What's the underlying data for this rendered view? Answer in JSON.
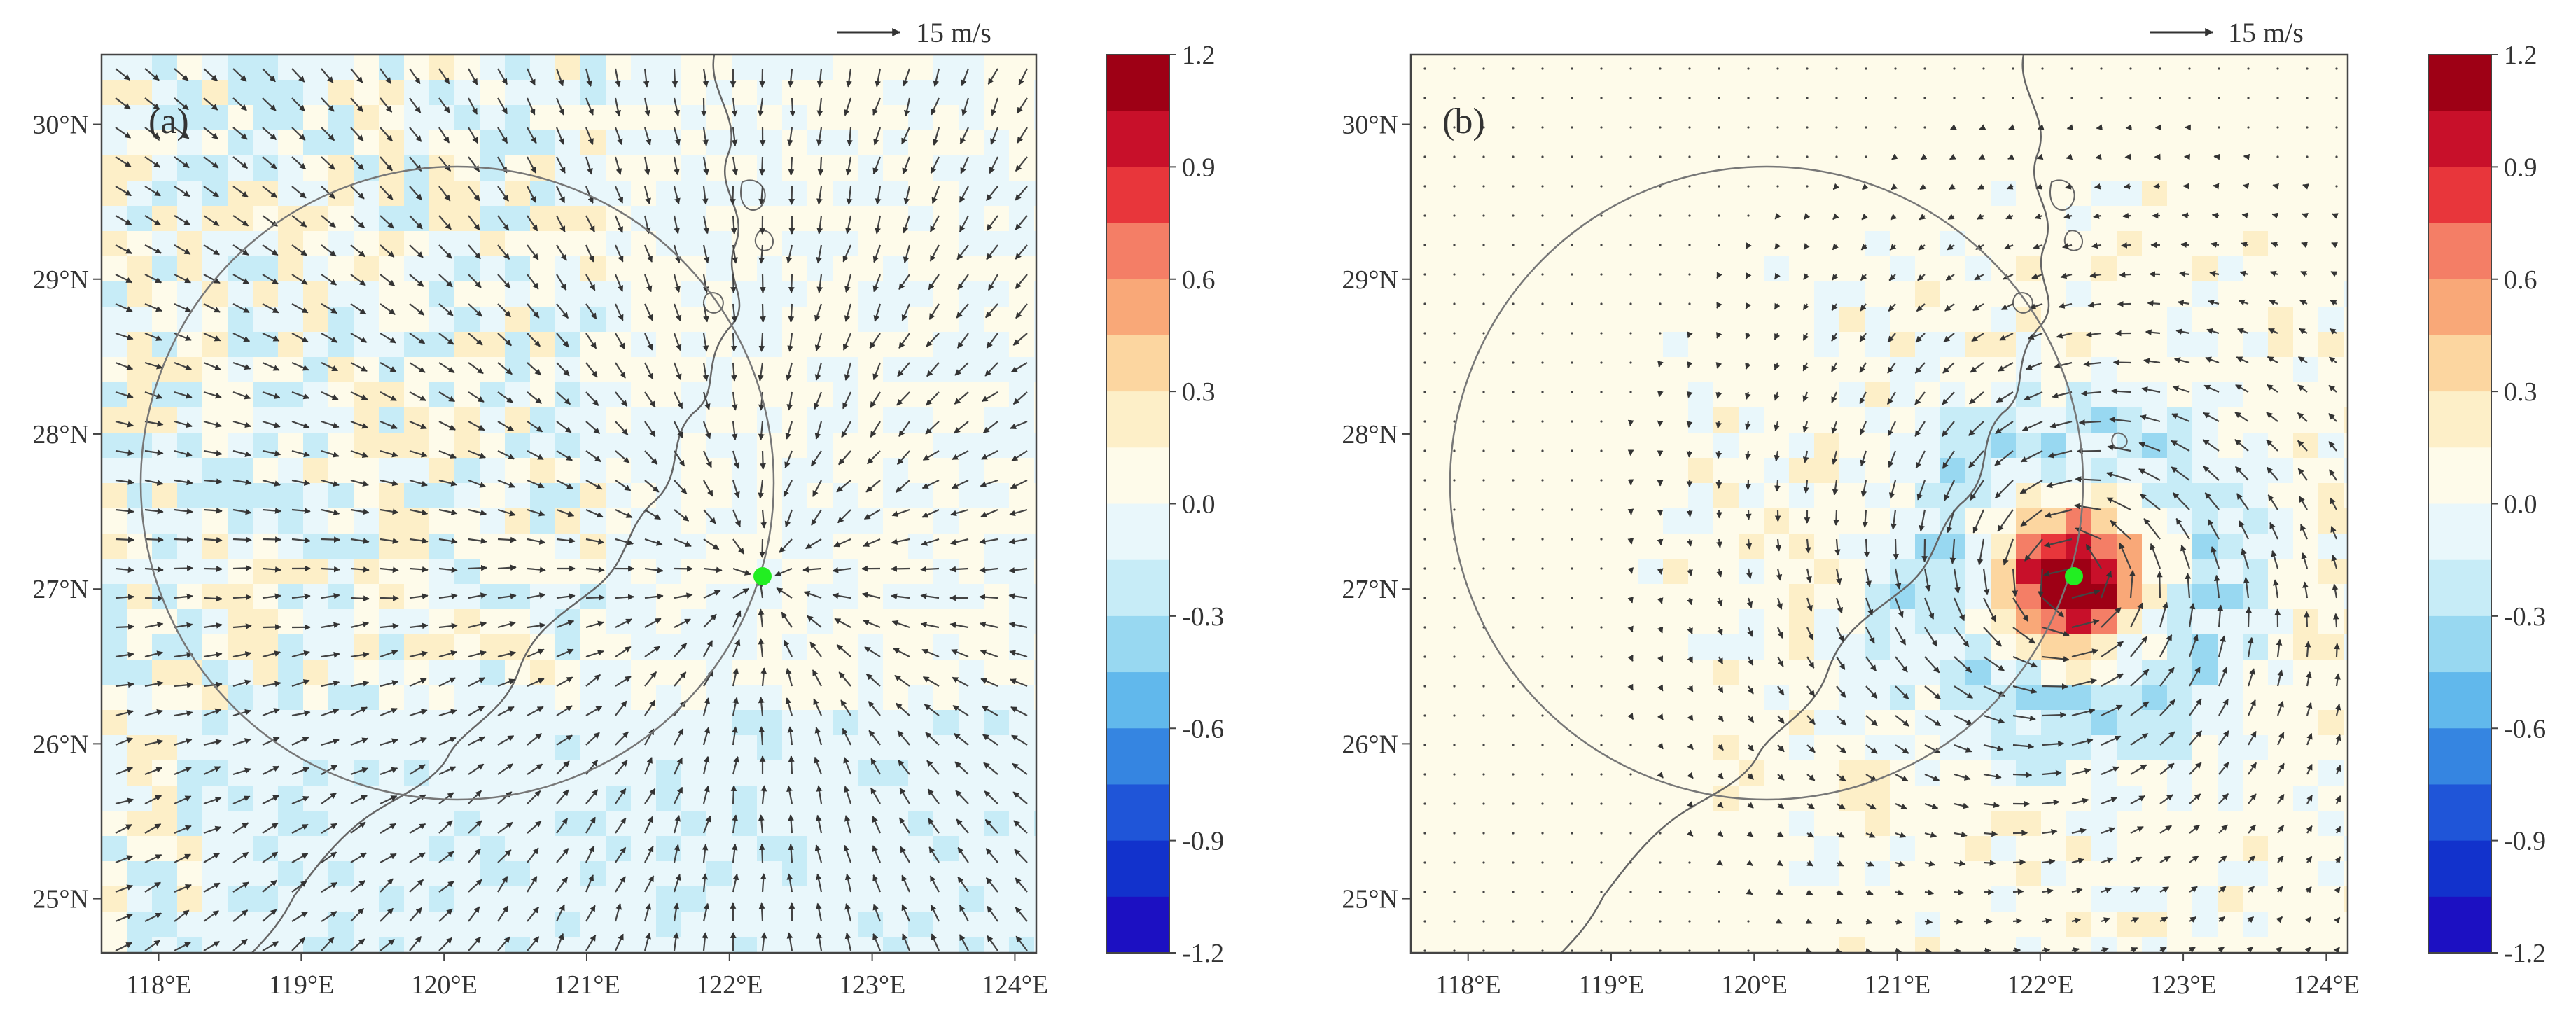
{
  "panels": [
    {
      "label": "(a)",
      "scale_label": "15 m/s",
      "field_pattern": "weak-noise",
      "vector_pattern": "sink",
      "marker_lonlat": [
        122.22,
        27.07
      ]
    },
    {
      "label": "(b)",
      "scale_label": "15 m/s",
      "field_pattern": "vortex-anomaly",
      "vector_pattern": "vortex",
      "marker_lonlat": [
        122.22,
        27.07
      ]
    }
  ],
  "map": {
    "lon_range": [
      117.6,
      124.15
    ],
    "lat_range": [
      24.65,
      30.45
    ],
    "lon_ticks": [
      "118°E",
      "119°E",
      "120°E",
      "121°E",
      "122°E",
      "123°E",
      "124°E"
    ],
    "lat_ticks": [
      "25°N",
      "26°N",
      "27°N",
      "28°N",
      "29°N",
      "30°N"
    ],
    "lon_tick_values": [
      118,
      119,
      120,
      121,
      122,
      123,
      124
    ],
    "lat_tick_values": [
      25,
      26,
      27,
      28,
      29,
      30
    ],
    "range_circle_center_lonlat": [
      120.6,
      27.7
    ],
    "range_circle_radius_lon": 2.22,
    "marker_color": "#22ee22"
  },
  "colorbar": {
    "levels": [
      1.2,
      0.9,
      0.6,
      0.3,
      0.0,
      -0.3,
      -0.6,
      -0.9,
      -1.2
    ],
    "labels": [
      "1.2",
      "0.9",
      "0.6",
      "0.3",
      "0.0",
      "-0.3",
      "-0.6",
      "-0.9",
      "-1.2"
    ],
    "colors": [
      "#9e0015",
      "#c8102a",
      "#e8363b",
      "#f47e66",
      "#f9a878",
      "#fcd6a0",
      "#fdefc8",
      "#fefbea",
      "#e9f7fb",
      "#c7ecf7",
      "#98d8f1",
      "#61b8ec",
      "#3585e1",
      "#1f55d8",
      "#1232cc",
      "#1c10c2"
    ]
  }
}
